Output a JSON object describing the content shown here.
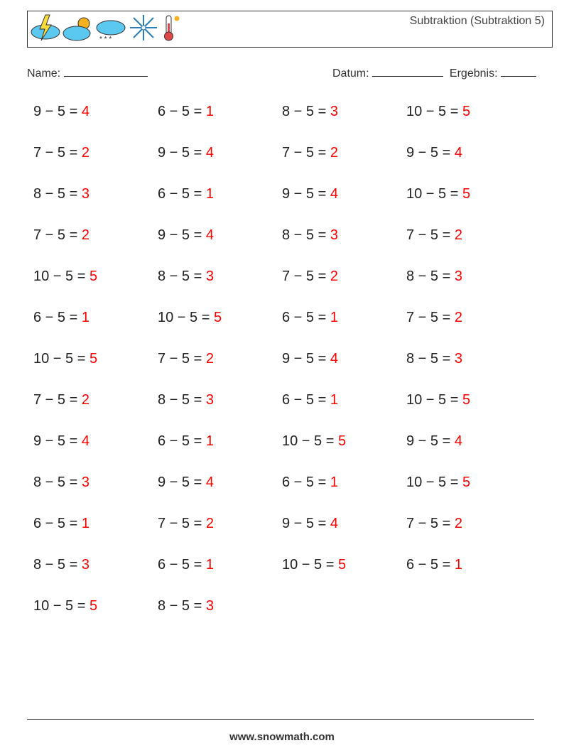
{
  "header": {
    "title": "Subtraktion (Subtraktion 5)",
    "icons": [
      "storm-cloud-icon",
      "sun-cloud-icon",
      "snow-cloud-icon",
      "snowflake-icon",
      "thermometer-icon"
    ]
  },
  "fields": {
    "name_label": "Name:",
    "date_label": "Datum:",
    "score_label": "Ergebnis:"
  },
  "problems": [
    {
      "q": "9 − 5 = ",
      "a": "4"
    },
    {
      "q": "6 − 5 = ",
      "a": "1"
    },
    {
      "q": "8 − 5 = ",
      "a": "3"
    },
    {
      "q": "10 − 5 = ",
      "a": "5"
    },
    {
      "q": "7 − 5 = ",
      "a": "2"
    },
    {
      "q": "9 − 5 = ",
      "a": "4"
    },
    {
      "q": "7 − 5 = ",
      "a": "2"
    },
    {
      "q": "9 − 5 = ",
      "a": "4"
    },
    {
      "q": "8 − 5 = ",
      "a": "3"
    },
    {
      "q": "6 − 5 = ",
      "a": "1"
    },
    {
      "q": "9 − 5 = ",
      "a": "4"
    },
    {
      "q": "10 − 5 = ",
      "a": "5"
    },
    {
      "q": "7 − 5 = ",
      "a": "2"
    },
    {
      "q": "9 − 5 = ",
      "a": "4"
    },
    {
      "q": "8 − 5 = ",
      "a": "3"
    },
    {
      "q": "7 − 5 = ",
      "a": "2"
    },
    {
      "q": "10 − 5 = ",
      "a": "5"
    },
    {
      "q": "8 − 5 = ",
      "a": "3"
    },
    {
      "q": "7 − 5 = ",
      "a": "2"
    },
    {
      "q": "8 − 5 = ",
      "a": "3"
    },
    {
      "q": "6 − 5 = ",
      "a": "1"
    },
    {
      "q": "10 − 5 = ",
      "a": "5"
    },
    {
      "q": "6 − 5 = ",
      "a": "1"
    },
    {
      "q": "7 − 5 = ",
      "a": "2"
    },
    {
      "q": "10 − 5 = ",
      "a": "5"
    },
    {
      "q": "7 − 5 = ",
      "a": "2"
    },
    {
      "q": "9 − 5 = ",
      "a": "4"
    },
    {
      "q": "8 − 5 = ",
      "a": "3"
    },
    {
      "q": "7 − 5 = ",
      "a": "2"
    },
    {
      "q": "8 − 5 = ",
      "a": "3"
    },
    {
      "q": "6 − 5 = ",
      "a": "1"
    },
    {
      "q": "10 − 5 = ",
      "a": "5"
    },
    {
      "q": "9 − 5 = ",
      "a": "4"
    },
    {
      "q": "6 − 5 = ",
      "a": "1"
    },
    {
      "q": "10 − 5 = ",
      "a": "5"
    },
    {
      "q": "9 − 5 = ",
      "a": "4"
    },
    {
      "q": "8 − 5 = ",
      "a": "3"
    },
    {
      "q": "9 − 5 = ",
      "a": "4"
    },
    {
      "q": "6 − 5 = ",
      "a": "1"
    },
    {
      "q": "10 − 5 = ",
      "a": "5"
    },
    {
      "q": "6 − 5 = ",
      "a": "1"
    },
    {
      "q": "7 − 5 = ",
      "a": "2"
    },
    {
      "q": "9 − 5 = ",
      "a": "4"
    },
    {
      "q": "7 − 5 = ",
      "a": "2"
    },
    {
      "q": "8 − 5 = ",
      "a": "3"
    },
    {
      "q": "6 − 5 = ",
      "a": "1"
    },
    {
      "q": "10 − 5 = ",
      "a": "5"
    },
    {
      "q": "6 − 5 = ",
      "a": "1"
    },
    {
      "q": "10 − 5 = ",
      "a": "5"
    },
    {
      "q": "8 − 5 = ",
      "a": "3"
    }
  ],
  "colors": {
    "answer": "#ff0000"
  },
  "footer": {
    "url": "www.snowmath.com"
  }
}
